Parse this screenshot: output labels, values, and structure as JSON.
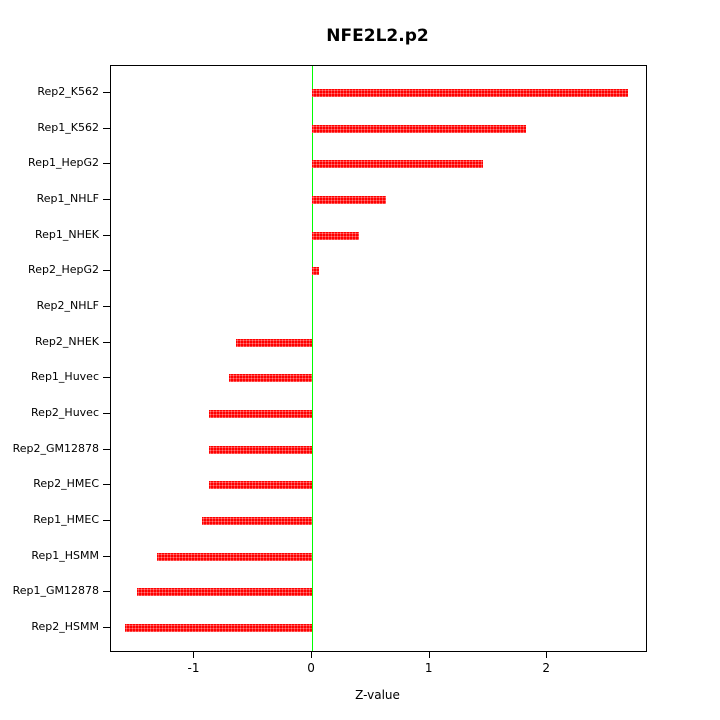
{
  "title": "NFE2L2.p2",
  "chart_data": {
    "type": "bar",
    "orientation": "horizontal",
    "title": "NFE2L2.p2",
    "xlabel": "Z-value",
    "ylabel": "",
    "grid": false,
    "legend": "none",
    "xlim": [
      -1.71,
      2.84
    ],
    "xticks": [
      -1,
      0,
      1,
      2
    ],
    "bar_color": "#ff0000",
    "zero_line_color": "#00ff00",
    "axis_color": "#000000",
    "categories": [
      "Rep2_K562",
      "Rep1_K562",
      "Rep1_HepG2",
      "Rep1_NHLF",
      "Rep1_NHEK",
      "Rep2_HepG2",
      "Rep2_NHLF",
      "Rep2_NHEK",
      "Rep1_Huvec",
      "Rep2_Huvec",
      "Rep2_GM12878",
      "Rep2_HMEC",
      "Rep1_HMEC",
      "Rep1_HSMM",
      "Rep1_GM12878",
      "Rep2_HSMM"
    ],
    "values": [
      2.69,
      1.82,
      1.45,
      0.63,
      0.4,
      0.06,
      0.0,
      -0.65,
      -0.71,
      -0.88,
      -0.88,
      -0.88,
      -0.94,
      -1.32,
      -1.49,
      -1.59
    ]
  }
}
